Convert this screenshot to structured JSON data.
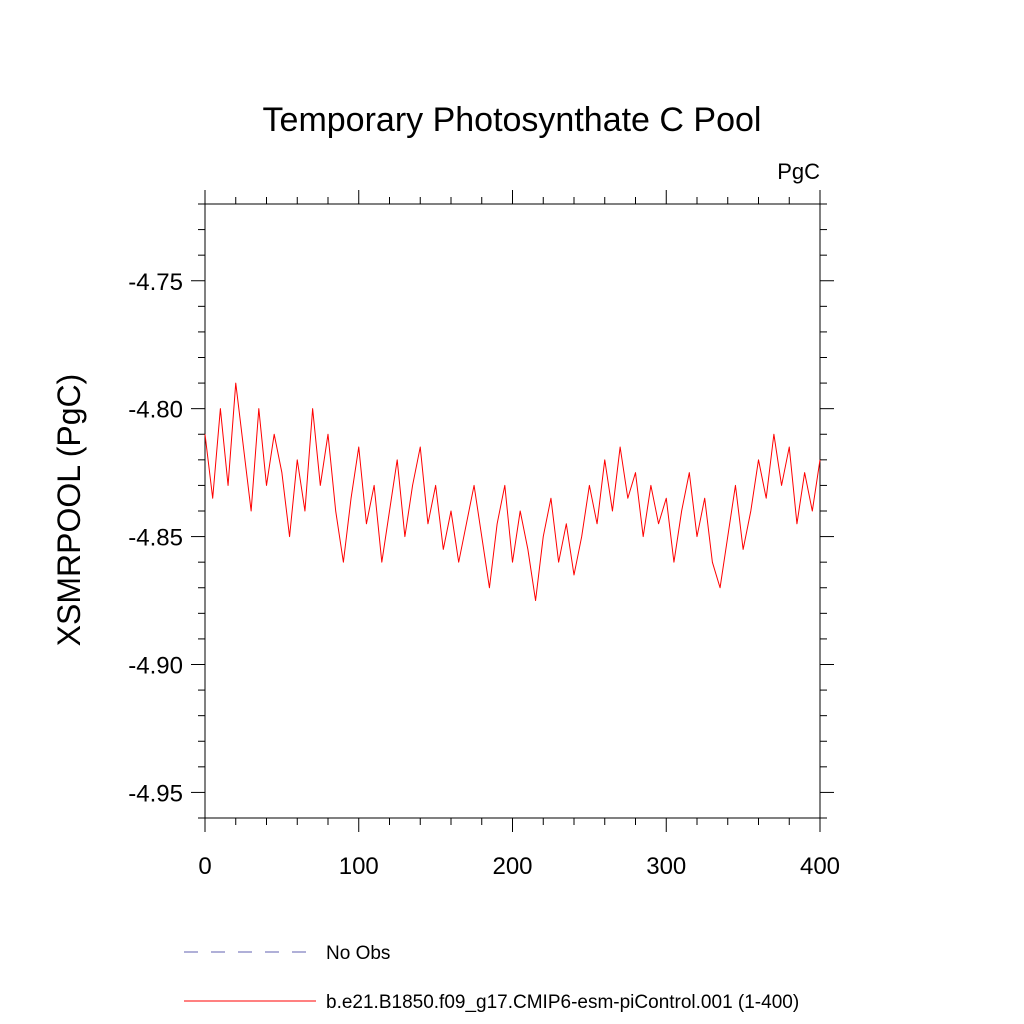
{
  "chart_data": {
    "type": "line",
    "title": "Temporary Photosynthate C Pool",
    "units_label": "PgC",
    "xlabel": "",
    "ylabel": "XSMRPOOL  (PgC)",
    "xlim": [
      0,
      400
    ],
    "ylim": [
      -4.96,
      -4.72
    ],
    "x_ticks": [
      0,
      100,
      200,
      300,
      400
    ],
    "x_tick_labels": [
      "0",
      "100",
      "200",
      "300",
      "400"
    ],
    "y_ticks": [
      -4.95,
      -4.9,
      -4.85,
      -4.8,
      -4.75
    ],
    "y_tick_labels": [
      "-4.95",
      "-4.90",
      "-4.85",
      "-4.80",
      "-4.75"
    ],
    "grid": false,
    "colors": {
      "model": "#ff0000",
      "obs": "#8080c0"
    },
    "legend": [
      {
        "label": "No Obs",
        "style": "dashed",
        "color": "#8080c0"
      },
      {
        "label": "b.e21.B1850.f09_g17.CMIP6-esm-piControl.001 (1-400)",
        "style": "solid",
        "color": "#ff0000"
      }
    ],
    "series": [
      {
        "name": "b.e21.B1850.f09_g17.CMIP6-esm-piControl.001 (1-400)",
        "x_start": 0,
        "x_step": 5,
        "values": [
          -4.81,
          -4.835,
          -4.8,
          -4.83,
          -4.79,
          -4.815,
          -4.84,
          -4.8,
          -4.83,
          -4.81,
          -4.825,
          -4.85,
          -4.82,
          -4.84,
          -4.8,
          -4.83,
          -4.81,
          -4.84,
          -4.86,
          -4.835,
          -4.815,
          -4.845,
          -4.83,
          -4.86,
          -4.84,
          -4.82,
          -4.85,
          -4.83,
          -4.815,
          -4.845,
          -4.83,
          -4.855,
          -4.84,
          -4.86,
          -4.845,
          -4.83,
          -4.85,
          -4.87,
          -4.845,
          -4.83,
          -4.86,
          -4.84,
          -4.855,
          -4.875,
          -4.85,
          -4.835,
          -4.86,
          -4.845,
          -4.865,
          -4.85,
          -4.83,
          -4.845,
          -4.82,
          -4.84,
          -4.815,
          -4.835,
          -4.825,
          -4.85,
          -4.83,
          -4.845,
          -4.835,
          -4.86,
          -4.84,
          -4.825,
          -4.85,
          -4.835,
          -4.86,
          -4.87,
          -4.85,
          -4.83,
          -4.855,
          -4.84,
          -4.82,
          -4.835,
          -4.81,
          -4.83,
          -4.815,
          -4.845,
          -4.825,
          -4.84,
          -4.82
        ]
      },
      {
        "name": "No Obs",
        "values": []
      }
    ]
  }
}
